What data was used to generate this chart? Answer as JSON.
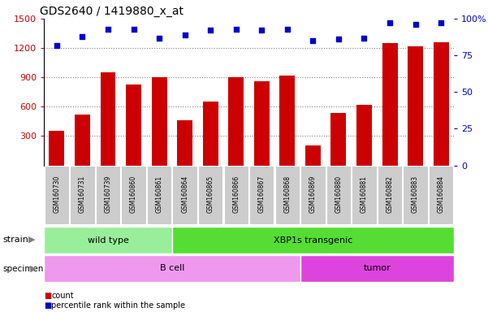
{
  "title": "GDS2640 / 1419880_x_at",
  "samples": [
    "GSM160730",
    "GSM160731",
    "GSM160739",
    "GSM160860",
    "GSM160861",
    "GSM160864",
    "GSM160865",
    "GSM160866",
    "GSM160867",
    "GSM160868",
    "GSM160869",
    "GSM160880",
    "GSM160881",
    "GSM160882",
    "GSM160883",
    "GSM160884"
  ],
  "counts": [
    350,
    520,
    950,
    830,
    900,
    460,
    650,
    900,
    860,
    920,
    200,
    540,
    620,
    1250,
    1220,
    1260
  ],
  "percentiles": [
    82,
    88,
    93,
    93,
    87,
    89,
    92,
    93,
    92,
    93,
    85,
    86,
    87,
    97,
    96,
    97
  ],
  "ylim_left": [
    0,
    1500
  ],
  "ylim_right": [
    0,
    100
  ],
  "yticks_left": [
    300,
    600,
    900,
    1200,
    1500
  ],
  "yticks_right": [
    0,
    25,
    50,
    75,
    100
  ],
  "bar_color": "#cc0000",
  "dot_color": "#0000cc",
  "strain_groups": [
    {
      "label": "wild type",
      "start": 0,
      "end": 5,
      "color": "#99ee99"
    },
    {
      "label": "XBP1s transgenic",
      "start": 5,
      "end": 16,
      "color": "#55dd33"
    }
  ],
  "specimen_groups": [
    {
      "label": "B cell",
      "start": 0,
      "end": 10,
      "color": "#ee99ee"
    },
    {
      "label": "tumor",
      "start": 10,
      "end": 16,
      "color": "#dd44dd"
    }
  ],
  "legend_items": [
    {
      "label": "count",
      "color": "#cc0000"
    },
    {
      "label": "percentile rank within the sample",
      "color": "#0000cc"
    }
  ],
  "background_color": "#ffffff",
  "tick_bg_color": "#cccccc"
}
